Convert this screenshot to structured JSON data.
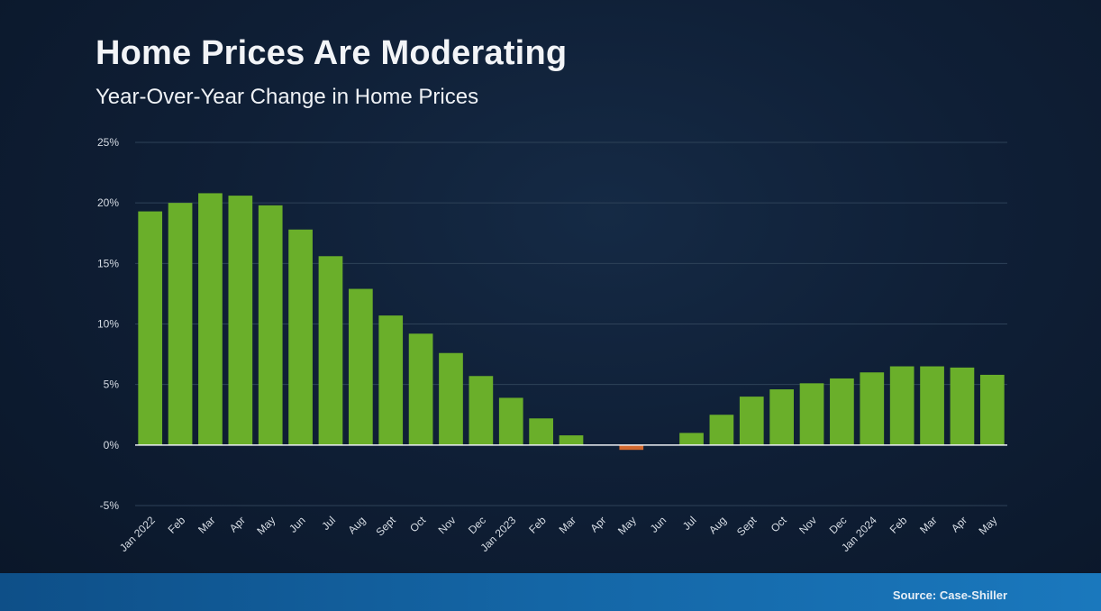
{
  "header": {
    "title": "Home Prices Are Moderating",
    "subtitle": "Year-Over-Year Change in Home Prices"
  },
  "footer": {
    "source": "Source: Case-Shiller"
  },
  "colors": {
    "positive_bar": "#6aaf2a",
    "negative_bar": "#d2692f",
    "gridline": "#2e4258",
    "baseline": "#eef1f5"
  },
  "chart_data": {
    "type": "bar",
    "title": "Year-Over-Year Change in Home Prices",
    "xlabel": "",
    "ylabel": "",
    "ylim": [
      -5,
      25
    ],
    "yticks": [
      25,
      20,
      15,
      10,
      5,
      0,
      -5
    ],
    "ytick_labels": [
      "25%",
      "20%",
      "15%",
      "10%",
      "5%",
      "0%",
      "-5%"
    ],
    "grid": true,
    "categories": [
      "Jan 2022",
      "Feb",
      "Mar",
      "Apr",
      "May",
      "Jun",
      "Jul",
      "Aug",
      "Sept",
      "Oct",
      "Nov",
      "Dec",
      "Jan 2023",
      "Feb",
      "Mar",
      "Apr",
      "May",
      "Jun",
      "Jul",
      "Aug",
      "Sept",
      "Oct",
      "Nov",
      "Dec",
      "Jan 2024",
      "Feb",
      "Mar",
      "Apr",
      "May"
    ],
    "values": [
      19.3,
      20.0,
      20.8,
      20.6,
      19.8,
      17.8,
      15.6,
      12.9,
      10.7,
      9.2,
      7.6,
      5.7,
      3.9,
      2.2,
      0.8,
      0.0,
      -0.4,
      0.0,
      1.0,
      2.5,
      4.0,
      4.6,
      5.1,
      5.5,
      6.0,
      6.5,
      6.5,
      6.4,
      5.8
    ]
  }
}
